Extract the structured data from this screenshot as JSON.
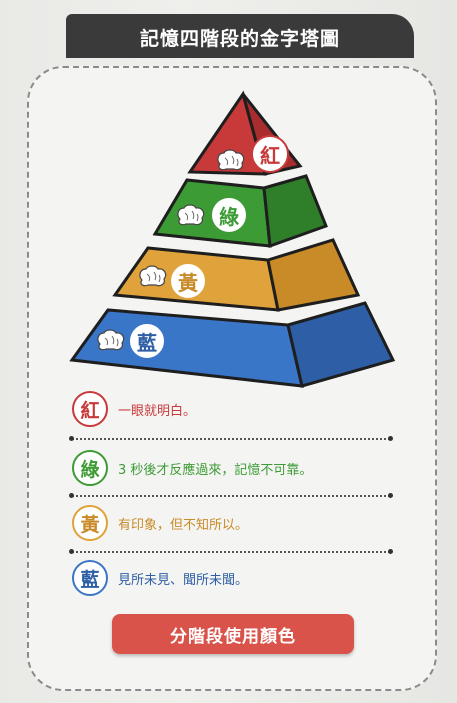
{
  "title": "記憶四階段的金字塔圖",
  "tiers": [
    {
      "key": "red",
      "label": "紅",
      "color": "#c8393a"
    },
    {
      "key": "green",
      "label": "綠",
      "color": "#3d9b35"
    },
    {
      "key": "yellow",
      "label": "黃",
      "color": "#e0a23a"
    },
    {
      "key": "blue",
      "label": "藍",
      "color": "#3a76c8"
    }
  ],
  "legend": [
    {
      "label": "紅",
      "text": "一眼就明白。",
      "color": "#c8393a"
    },
    {
      "label": "綠",
      "text": "3 秒後才反應過來，記憶不可靠。",
      "color": "#3d9b35"
    },
    {
      "label": "黃",
      "text": "有印象，但不知所以。",
      "color": "#e0a23a"
    },
    {
      "label": "藍",
      "text": "見所未見、聞所未聞。",
      "color": "#3a76c8"
    }
  ],
  "cta_label": "分階段使用顏色",
  "icons": [
    "brain-icon"
  ]
}
